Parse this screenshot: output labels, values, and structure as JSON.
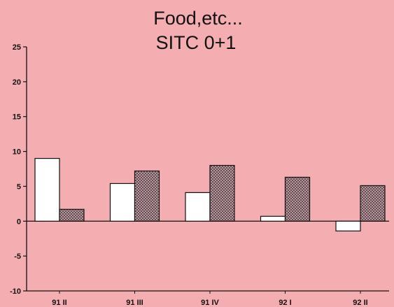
{
  "chart_data": {
    "type": "bar",
    "title": "Food,etc...",
    "subtitle": "SITC 0+1",
    "xlabel": "",
    "ylabel": "",
    "categories": [
      "91 II",
      "91 III",
      "91 IV",
      "92 I",
      "92 II"
    ],
    "series": [
      {
        "fill": "white",
        "values": [
          9.0,
          5.4,
          4.1,
          0.7,
          -1.4
        ]
      },
      {
        "fill": "crosshatch",
        "values": [
          1.7,
          7.2,
          8.0,
          6.3,
          5.1
        ]
      }
    ],
    "ylim": [
      -10,
      25
    ],
    "yticks": [
      25,
      20,
      15,
      10,
      5,
      0,
      -5,
      -10
    ],
    "grid": false,
    "legend": "none"
  },
  "colors": {
    "background": "#f4aeb2",
    "bar_outline": "#111111",
    "hollow_bar": "#ffffff",
    "hatched_bar": "#8d7177"
  }
}
